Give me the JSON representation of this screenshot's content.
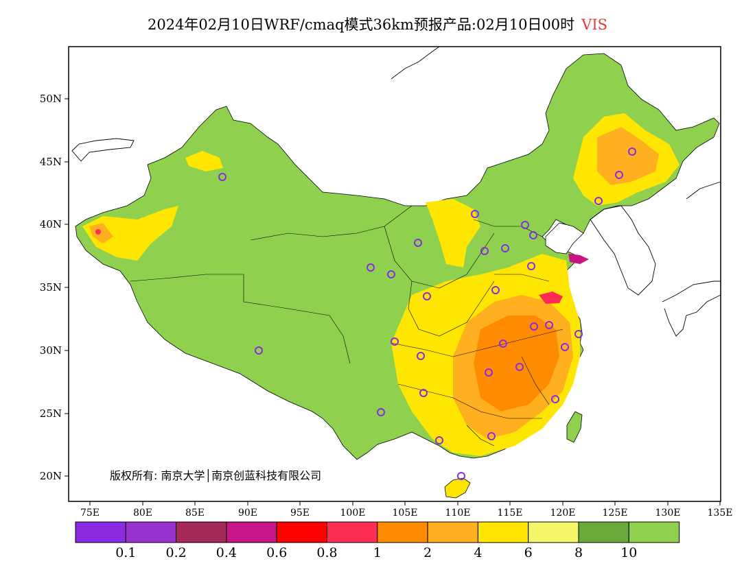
{
  "title": {
    "main": "2024年02月10日WRF/cmaq模式36km预报产品:02月10日00时",
    "variable": "VIS"
  },
  "colors": {
    "variable_label": "#e8372f",
    "frame": "#000000",
    "land": "#8fd14f",
    "ocean": "#ffffff",
    "station_marker": "#8a2be2"
  },
  "axes": {
    "lat_labels": [
      "50N",
      "45N",
      "40N",
      "35N",
      "30N",
      "25N",
      "20N"
    ],
    "lon_labels": [
      "75E",
      "80E",
      "85E",
      "90E",
      "95E",
      "100E",
      "105E",
      "110E",
      "115E",
      "120E",
      "125E",
      "130E",
      "135E"
    ]
  },
  "colorbar": {
    "colors": [
      "#8a2be2",
      "#9932cc",
      "#a52a5a",
      "#c71585",
      "#ff0000",
      "#ff2d55",
      "#ff8c00",
      "#ffb020",
      "#ffe600",
      "#f5f56a",
      "#6aaa3a",
      "#8fd14f"
    ],
    "labels": [
      "0.1",
      "0.2",
      "0.4",
      "0.6",
      "0.8",
      "1",
      "2",
      "4",
      "6",
      "8",
      "10"
    ]
  },
  "copyright": "版权所有: 南京大学│南京创蓝科技有限公司"
}
